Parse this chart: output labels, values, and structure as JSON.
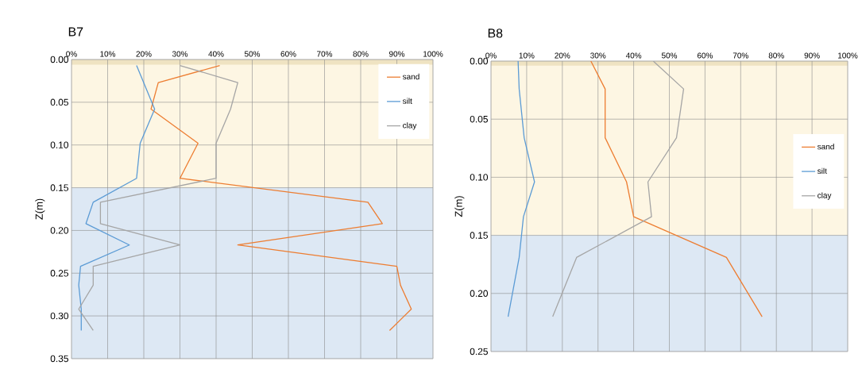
{
  "chart_data": [
    {
      "type": "line",
      "title": "B7",
      "ylabel": "Z(m)",
      "orientation": "horizontal",
      "grid": true,
      "legend": "top right",
      "xlim": [
        0,
        100
      ],
      "xticks": [
        {
          "value": 0,
          "label": "0%"
        },
        {
          "value": 10,
          "label": "10%"
        },
        {
          "value": 20,
          "label": "20%"
        },
        {
          "value": 30,
          "label": "30%"
        },
        {
          "value": 40,
          "label": "40%"
        },
        {
          "value": 50,
          "label": "50%"
        },
        {
          "value": 60,
          "label": "60%"
        },
        {
          "value": 70,
          "label": "70%"
        },
        {
          "value": 80,
          "label": "80%"
        },
        {
          "value": 90,
          "label": "90%"
        },
        {
          "value": 100,
          "label": "100%"
        }
      ],
      "ylim": [
        0.35,
        0
      ],
      "yticks": [
        {
          "value": 0,
          "label": "0.00"
        },
        {
          "value": 0.05,
          "label": "0.05"
        },
        {
          "value": 0.1,
          "label": "0.10"
        },
        {
          "value": 0.15,
          "label": "0.15"
        },
        {
          "value": 0.2,
          "label": "0.20"
        },
        {
          "value": 0.25,
          "label": "0.25"
        },
        {
          "value": 0.3,
          "label": "0.30"
        },
        {
          "value": 0.35,
          "label": "0.35"
        }
      ],
      "bands": [
        {
          "axis": "y",
          "from": 0,
          "to": 0.15,
          "color": "#fdf6e3"
        },
        {
          "axis": "y",
          "from": 0.15,
          "to": 0.35,
          "color": "#dde8f4"
        },
        {
          "axis": "y",
          "from": 0,
          "to": 0.006,
          "color": "#efe3c2"
        }
      ],
      "series": [
        {
          "name": "sand",
          "color": "#ed7d31",
          "x": [
            0.007,
            0.027,
            0.058,
            0.098,
            0.139,
            0.167,
            0.192,
            0.217,
            0.242,
            0.264,
            0.292,
            0.317
          ],
          "values": [
            41,
            24,
            22,
            35,
            30,
            82,
            86,
            46,
            90,
            91,
            94,
            88
          ]
        },
        {
          "name": "silt",
          "color": "#5b9bd5",
          "x": [
            0.007,
            0.058,
            0.098,
            0.139,
            0.167,
            0.192,
            0.217,
            0.242,
            0.264,
            0.292,
            0.317
          ],
          "values": [
            18,
            23,
            19,
            18,
            6,
            4,
            16,
            2.5,
            2,
            2.7,
            2.7
          ]
        },
        {
          "name": "clay",
          "color": "#a5a5a5",
          "x": [
            0.007,
            0.027,
            0.058,
            0.098,
            0.139,
            0.167,
            0.192,
            0.217,
            0.242,
            0.264,
            0.292,
            0.317
          ],
          "values": [
            30,
            46,
            44,
            40,
            40,
            8,
            8,
            30,
            6,
            6,
            2,
            6
          ]
        }
      ]
    },
    {
      "type": "line",
      "title": "B8",
      "ylabel": "Z(m)",
      "orientation": "horizontal",
      "grid": true,
      "legend": "right",
      "xlim": [
        0,
        100
      ],
      "xticks": [
        {
          "value": 0,
          "label": "0%"
        },
        {
          "value": 10,
          "label": "10%"
        },
        {
          "value": 20,
          "label": "20%"
        },
        {
          "value": 30,
          "label": "30%"
        },
        {
          "value": 40,
          "label": "40%"
        },
        {
          "value": 50,
          "label": "50%"
        },
        {
          "value": 60,
          "label": "60%"
        },
        {
          "value": 70,
          "label": "70%"
        },
        {
          "value": 80,
          "label": "80%"
        },
        {
          "value": 90,
          "label": "90%"
        },
        {
          "value": 100,
          "label": "100%"
        }
      ],
      "ylim": [
        0.25,
        0
      ],
      "yticks": [
        {
          "value": 0,
          "label": "0.00"
        },
        {
          "value": 0.05,
          "label": "0.05"
        },
        {
          "value": 0.1,
          "label": "0.10"
        },
        {
          "value": 0.15,
          "label": "0.15"
        },
        {
          "value": 0.2,
          "label": "0.20"
        },
        {
          "value": 0.25,
          "label": "0.25"
        }
      ],
      "bands": [
        {
          "axis": "y",
          "from": 0,
          "to": 0.15,
          "color": "#fdf6e3"
        },
        {
          "axis": "y",
          "from": 0.15,
          "to": 0.25,
          "color": "#dde8f4"
        },
        {
          "axis": "y",
          "from": 0,
          "to": 0.004,
          "color": "#efe3c2"
        }
      ],
      "series": [
        {
          "name": "sand",
          "color": "#ed7d31",
          "x": [
            0.0,
            0.024,
            0.066,
            0.104,
            0.134,
            0.169,
            0.22
          ],
          "values": [
            28,
            32,
            32,
            38,
            40,
            66,
            76
          ]
        },
        {
          "name": "silt",
          "color": "#5b9bd5",
          "x": [
            0.0,
            0.024,
            0.066,
            0.104,
            0.134,
            0.169,
            0.22
          ],
          "values": [
            7.6,
            7.9,
            9.3,
            12.2,
            9.1,
            7.9,
            4.8
          ]
        },
        {
          "name": "clay",
          "color": "#a5a5a5",
          "x": [
            0.0,
            0.024,
            0.066,
            0.104,
            0.134,
            0.169,
            0.22
          ],
          "values": [
            45.5,
            54,
            52,
            44,
            45,
            24,
            17.3
          ]
        }
      ]
    }
  ]
}
